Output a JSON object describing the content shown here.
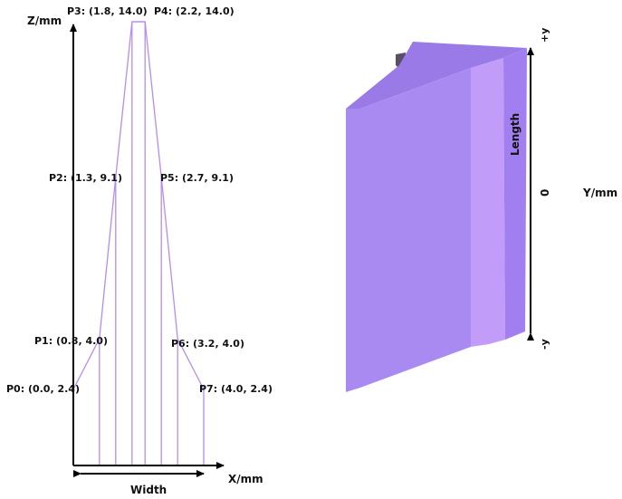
{
  "colors": {
    "profile_line": "#b48cf2",
    "block_front": "#a98af0",
    "block_top": "#9a7ae6",
    "block_band": "#c29cf9",
    "block_right": "#a27ff0",
    "block_shadow": "#5a4f66",
    "axis": "#000000"
  },
  "left_diagram": {
    "axis_z_label": "Z/mm",
    "axis_x_label": "X/mm",
    "width_label": "Width",
    "points": [
      {
        "label": "P0: (0.0, 2.4)",
        "x": 0.0,
        "z": 2.4
      },
      {
        "label": "P1: (0.8, 4.0)",
        "x": 0.8,
        "z": 4.0
      },
      {
        "label": "P2: (1.3, 9.1)",
        "x": 1.3,
        "z": 9.1
      },
      {
        "label": "P3: (1.8, 14.0)",
        "x": 1.8,
        "z": 14.0
      },
      {
        "label": "P4: (2.2, 14.0)",
        "x": 2.2,
        "z": 14.0
      },
      {
        "label": "P5: (2.7, 9.1)",
        "x": 2.7,
        "z": 9.1
      },
      {
        "label": "P6: (3.2, 4.0)",
        "x": 3.2,
        "z": 4.0
      },
      {
        "label": "P7: (4.0, 2.4)",
        "x": 4.0,
        "z": 2.4
      }
    ]
  },
  "right_diagram": {
    "length_label": "Length",
    "plus_y_label": "+y",
    "minus_y_label": "-y",
    "zero_label": "0",
    "axis_y_label": "Y/mm"
  }
}
